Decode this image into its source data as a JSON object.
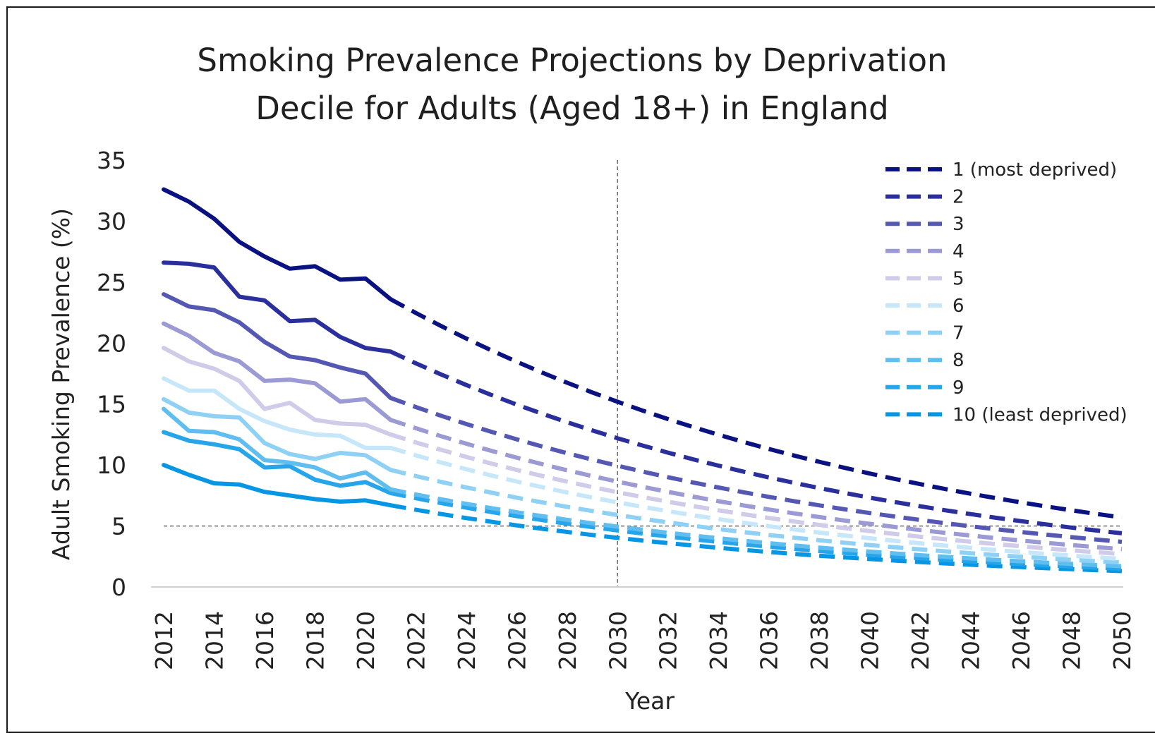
{
  "chart_data": {
    "type": "line",
    "title": [
      "Smoking Prevalence Projections by Deprivation",
      "Decile for Adults (Aged 18+) in England"
    ],
    "xlabel": "Year",
    "ylabel": "Adult Smoking Prevalence (%)",
    "xlim": [
      2012,
      2050
    ],
    "ylim": [
      0,
      35
    ],
    "y_ticks": [
      0,
      5,
      10,
      15,
      20,
      25,
      30,
      35
    ],
    "x_ticks": [
      2012,
      2014,
      2016,
      2018,
      2020,
      2022,
      2024,
      2026,
      2028,
      2030,
      2032,
      2034,
      2036,
      2038,
      2040,
      2042,
      2044,
      2046,
      2048,
      2050
    ],
    "observed_years": [
      2012,
      2013,
      2014,
      2015,
      2016,
      2017,
      2018,
      2019,
      2020,
      2021
    ],
    "projection_start_year": 2021,
    "projection_end_year": 2050,
    "reference_lines": {
      "x": 2030,
      "y": 5
    },
    "grid": false,
    "legend_position": "top-right",
    "series": [
      {
        "name": "1 (most deprived)",
        "color": "#0a1180",
        "observed": [
          32.6,
          31.6,
          30.2,
          28.3,
          27.1,
          26.1,
          26.3,
          25.2,
          25.3,
          23.6
        ],
        "projected_end": 5.7
      },
      {
        "name": "2",
        "color": "#2a2f9c",
        "observed": [
          26.6,
          26.5,
          26.2,
          23.8,
          23.5,
          21.8,
          21.9,
          20.5,
          19.6,
          19.3
        ],
        "projected_end": 4.4
      },
      {
        "name": "3",
        "color": "#5558b3",
        "observed": [
          24.0,
          23.0,
          22.7,
          21.7,
          20.1,
          18.9,
          18.6,
          18.0,
          17.5,
          15.5
        ],
        "projected_end": 3.7
      },
      {
        "name": "4",
        "color": "#9b9ad4",
        "observed": [
          21.6,
          20.6,
          19.2,
          18.5,
          16.9,
          17.0,
          16.7,
          15.2,
          15.4,
          13.7
        ],
        "projected_end": 3.1
      },
      {
        "name": "5",
        "color": "#cfcbe8",
        "observed": [
          19.6,
          18.5,
          17.9,
          16.9,
          14.6,
          15.1,
          13.7,
          13.4,
          13.3,
          12.5
        ],
        "projected_end": 2.7
      },
      {
        "name": "6",
        "color": "#c6e6fa",
        "observed": [
          17.1,
          16.1,
          16.1,
          14.6,
          13.6,
          12.9,
          12.5,
          12.4,
          11.4,
          11.4
        ],
        "projected_end": 2.3
      },
      {
        "name": "7",
        "color": "#8fd1f4",
        "observed": [
          15.4,
          14.3,
          14.0,
          13.9,
          11.8,
          10.9,
          10.5,
          11.0,
          10.8,
          9.6
        ],
        "projected_end": 2.0
      },
      {
        "name": "8",
        "color": "#5fbdf0",
        "observed": [
          14.6,
          12.8,
          12.7,
          12.1,
          10.4,
          10.2,
          9.8,
          8.9,
          9.4,
          8.0
        ],
        "projected_end": 1.7
      },
      {
        "name": "9",
        "color": "#27a5ea",
        "observed": [
          12.7,
          12.0,
          11.7,
          11.3,
          9.8,
          9.9,
          8.8,
          8.3,
          8.6,
          7.7
        ],
        "projected_end": 1.5
      },
      {
        "name": "10 (least deprived)",
        "color": "#0796e3",
        "observed": [
          10.0,
          9.2,
          8.5,
          8.4,
          7.8,
          7.5,
          7.2,
          7.0,
          7.1,
          6.7
        ],
        "projected_end": 1.3
      }
    ]
  }
}
